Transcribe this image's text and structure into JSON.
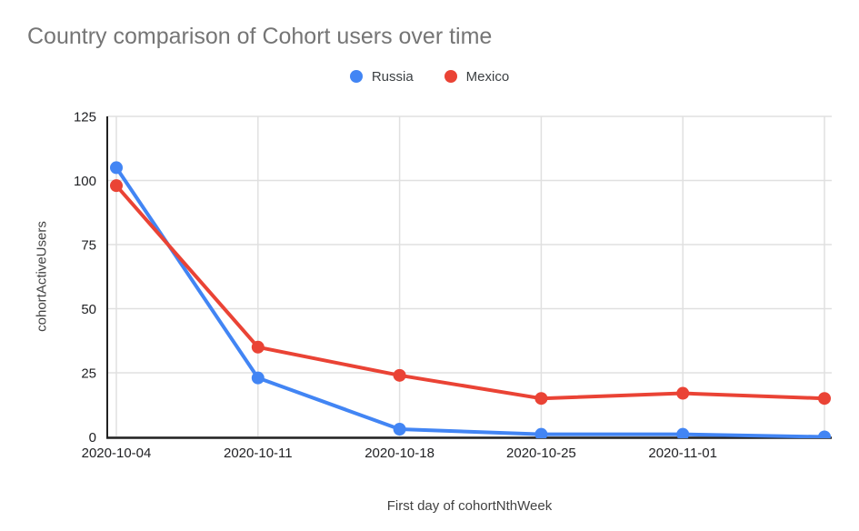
{
  "chart_data": {
    "type": "line",
    "title": "Country comparison of Cohort users over time",
    "xlabel": "First day of cohortNthWeek",
    "ylabel": "cohortActiveUsers",
    "categories": [
      "2020-10-04",
      "2020-10-11",
      "2020-10-18",
      "2020-10-25",
      "2020-11-01",
      ""
    ],
    "series": [
      {
        "name": "Russia",
        "color": "#4285F4",
        "values": [
          105,
          23,
          3,
          1,
          1,
          0
        ]
      },
      {
        "name": "Mexico",
        "color": "#EA4335",
        "values": [
          98,
          35,
          24,
          15,
          17,
          15
        ]
      }
    ],
    "ylim": [
      0,
      125
    ],
    "yticks": [
      0,
      25,
      50,
      75,
      100,
      125
    ],
    "grid": true,
    "legend_position": "top",
    "colors": {
      "title_text": "#757575",
      "axis_line": "#212121",
      "gridline": "#e0e0e0",
      "tick_text": "#202124"
    }
  }
}
